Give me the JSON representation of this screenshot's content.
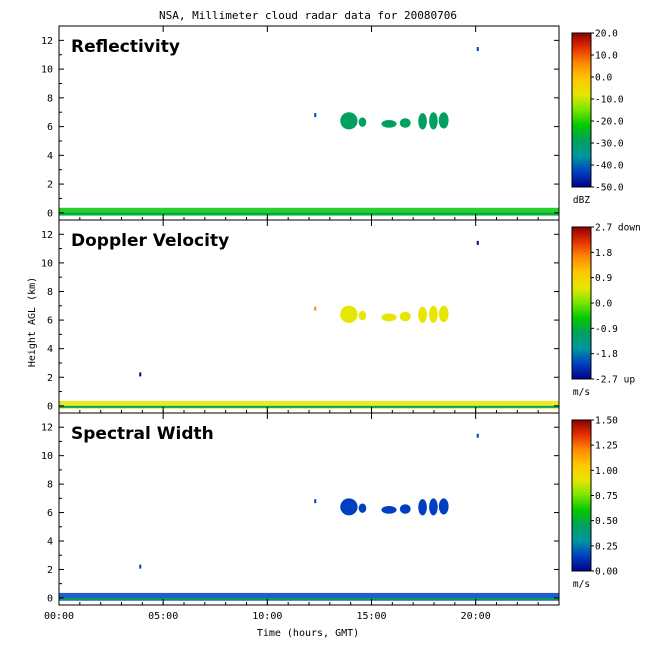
{
  "chart_data": {
    "type": "heatmap",
    "title": "NSA, Millimeter cloud radar data for 20080706",
    "xlabel": "Time (hours, GMT)",
    "ylabel": "Height AGL (km)",
    "xlim": [
      0,
      24
    ],
    "ylim": [
      -0.5,
      13
    ],
    "x_ticks": [
      "00:00",
      "05:00",
      "10:00",
      "15:00",
      "20:00"
    ],
    "y_ticks": [
      "0",
      "2",
      "4",
      "6",
      "8",
      "10",
      "12"
    ],
    "panels": [
      {
        "name": "Reflectivity",
        "unit": "dBZ",
        "colorbar_ticks": [
          "20.0",
          "10.0",
          "0.0",
          "-10.0",
          "-20.0",
          "-30.0",
          "-40.0",
          "-50.0"
        ],
        "colorbar_range": [
          -50,
          20
        ],
        "features": [
          {
            "label": "surface clutter layer",
            "t_start": 0,
            "t_end": 24,
            "z_km": 0,
            "value": -20
          },
          {
            "label": "mid-level cloud",
            "t_start": 13.5,
            "t_end": 18.7,
            "z_low_km": 5.8,
            "z_high_km": 7.0,
            "value": -30
          },
          {
            "label": "isolated echo",
            "t": 12.3,
            "z_km": 6.8,
            "value": -40
          },
          {
            "label": "isolated echo",
            "t": 20.1,
            "z_km": 11.4,
            "value": -45
          }
        ]
      },
      {
        "name": "Doppler Velocity",
        "unit": "m/s",
        "colorbar_ticks": [
          "2.7 down",
          "1.8",
          "0.9",
          "0.0",
          "-0.9",
          "-1.8",
          "-2.7 up"
        ],
        "colorbar_range": [
          -2.7,
          2.7
        ],
        "features": [
          {
            "label": "surface clutter layer",
            "t_start": 0,
            "t_end": 24,
            "z_km": 0,
            "value": 0.3
          },
          {
            "label": "mid-level cloud",
            "t_start": 13.5,
            "t_end": 18.7,
            "z_low_km": 5.8,
            "z_high_km": 7.0,
            "value": 0.5
          },
          {
            "label": "isolated echo",
            "t": 12.3,
            "z_km": 6.8,
            "value": 1.5
          },
          {
            "label": "isolated echo",
            "t": 20.1,
            "z_km": 11.4,
            "value": -2.5
          },
          {
            "label": "isolated echo",
            "t": 3.9,
            "z_km": 2.2,
            "value": -2.5
          }
        ]
      },
      {
        "name": "Spectral Width",
        "unit": "m/s",
        "colorbar_ticks": [
          "1.50",
          "1.25",
          "1.00",
          "0.75",
          "0.50",
          "0.25",
          "0.00"
        ],
        "colorbar_range": [
          0,
          1.5
        ],
        "features": [
          {
            "label": "surface clutter layer",
            "t_start": 0,
            "t_end": 24,
            "z_km": 0,
            "value": 0.1
          },
          {
            "label": "mid-level cloud",
            "t_start": 13.5,
            "t_end": 18.7,
            "z_low_km": 5.8,
            "z_high_km": 7.0,
            "value": 0.1
          },
          {
            "label": "isolated echo",
            "t": 12.3,
            "z_km": 6.8,
            "value": 0.1
          },
          {
            "label": "isolated echo",
            "t": 20.1,
            "z_km": 11.4,
            "value": 0.1
          },
          {
            "label": "isolated echo",
            "t": 3.9,
            "z_km": 2.2,
            "value": 0.1
          }
        ]
      }
    ],
    "colors": {
      "colormap": [
        "#00008b",
        "#0040c0",
        "#0096a0",
        "#00a060",
        "#00c800",
        "#78e600",
        "#e6e600",
        "#ffc800",
        "#ff8c00",
        "#e63200",
        "#8b0000"
      ],
      "background": "#ffffff"
    }
  }
}
